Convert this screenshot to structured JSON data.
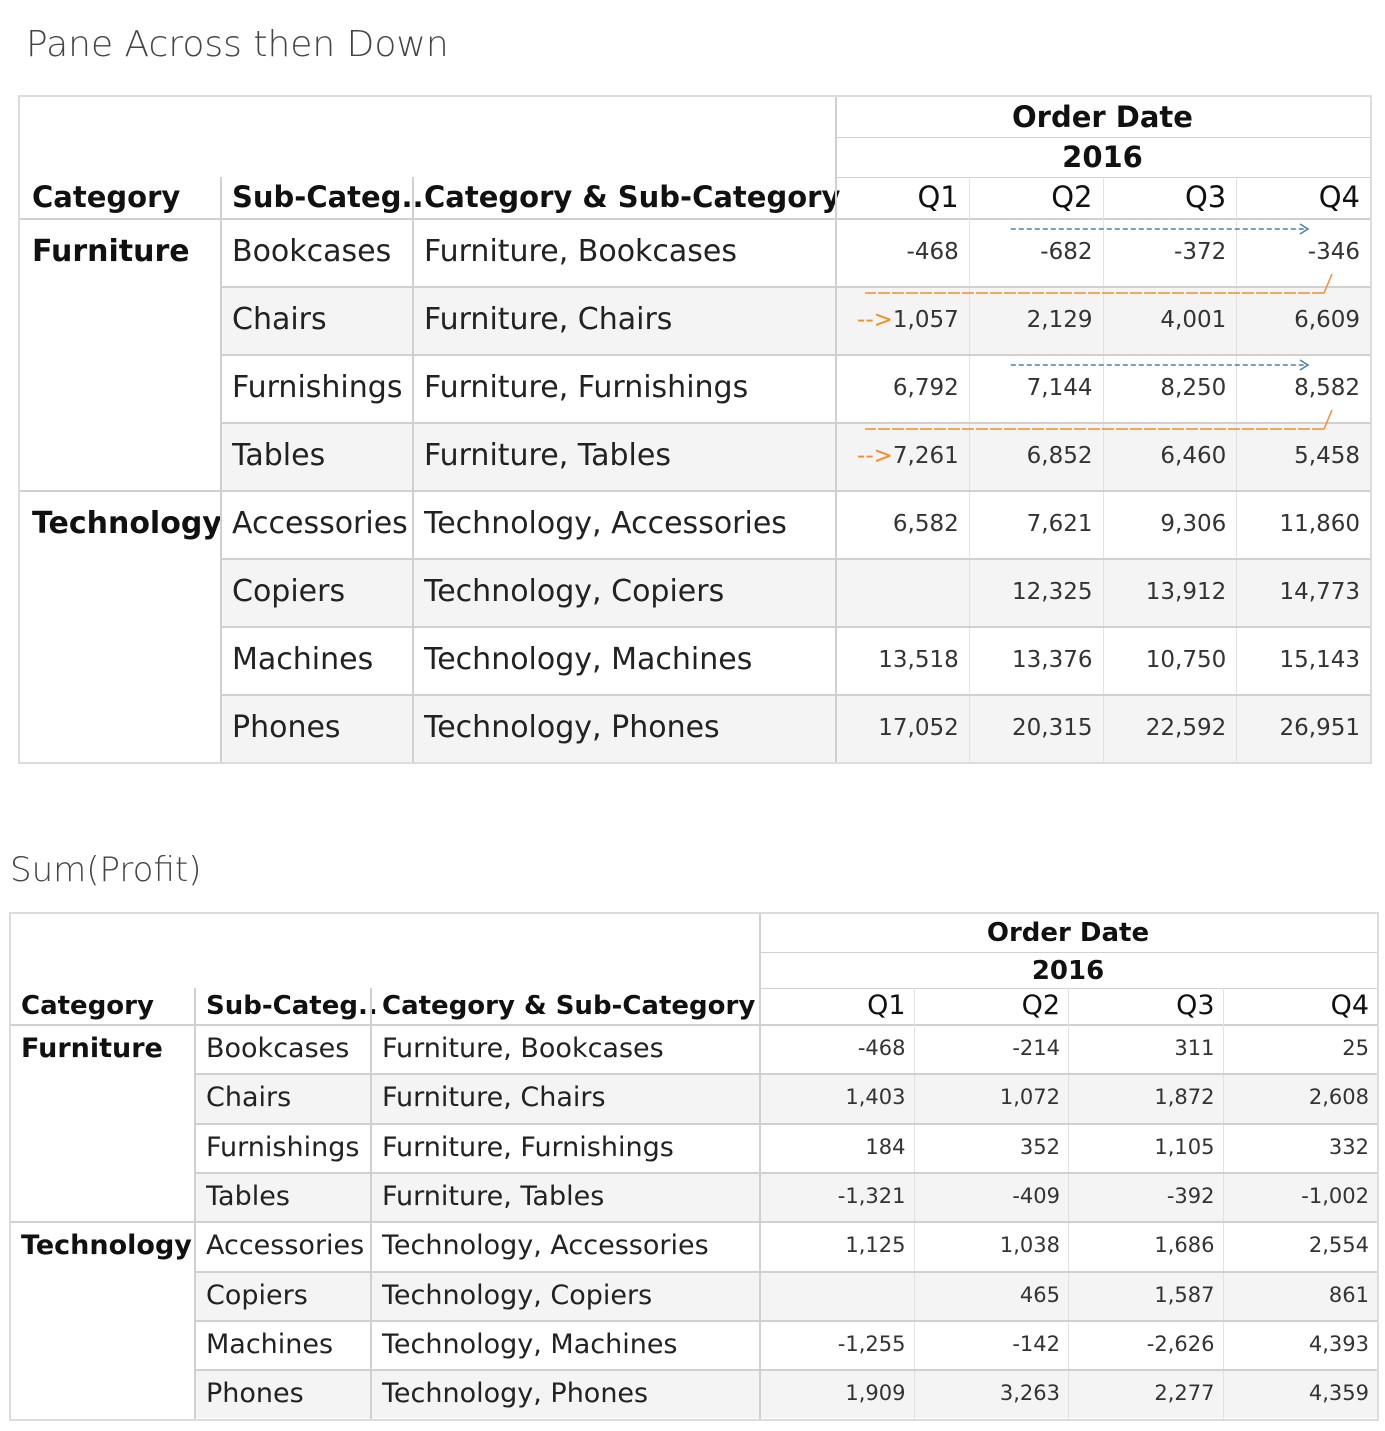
{
  "chart_data": [
    {
      "type": "table",
      "title": "Pane Across then Down",
      "column_header": {
        "field": "Order Date",
        "year": "2016",
        "quarters": [
          "Q1",
          "Q2",
          "Q3",
          "Q4"
        ]
      },
      "row_headers": [
        "Category",
        "Sub-Categ..",
        "Category & Sub-Category"
      ],
      "rows": [
        {
          "category": "Furniture",
          "sub": "Bookcases",
          "combo": "Furniture, Bookcases",
          "values": [
            "-468",
            "-682",
            "-372",
            "-346"
          ]
        },
        {
          "category": "",
          "sub": "Chairs",
          "combo": "Furniture, Chairs",
          "values": [
            "1,057",
            "2,129",
            "4,001",
            "6,609"
          ]
        },
        {
          "category": "",
          "sub": "Furnishings",
          "combo": "Furniture, Furnishings",
          "values": [
            "6,792",
            "7,144",
            "8,250",
            "8,582"
          ]
        },
        {
          "category": "",
          "sub": "Tables",
          "combo": "Furniture, Tables",
          "values": [
            "7,261",
            "6,852",
            "6,460",
            "5,458"
          ]
        },
        {
          "category": "Technology",
          "sub": "Accessories",
          "combo": "Technology, Accessories",
          "values": [
            "6,582",
            "7,621",
            "9,306",
            "11,860"
          ]
        },
        {
          "category": "",
          "sub": "Copiers",
          "combo": "Technology, Copiers",
          "values": [
            "",
            "12,325",
            "13,912",
            "14,773"
          ]
        },
        {
          "category": "",
          "sub": "Machines",
          "combo": "Technology, Machines",
          "values": [
            "13,518",
            "13,376",
            "10,750",
            "15,143"
          ]
        },
        {
          "category": "",
          "sub": "Phones",
          "combo": "Technology, Phones",
          "values": [
            "17,052",
            "20,315",
            "22,592",
            "26,951"
          ]
        }
      ],
      "annotation_prefix": "-->",
      "colors": {
        "arrow_blue": "#4a7fa8",
        "arrow_orange": "#f28e2b",
        "band": "#f4f4f4",
        "grid": "#d0d0d0"
      }
    },
    {
      "type": "table",
      "title": "Sum(Profit)",
      "column_header": {
        "field": "Order Date",
        "year": "2016",
        "quarters": [
          "Q1",
          "Q2",
          "Q3",
          "Q4"
        ]
      },
      "row_headers": [
        "Category",
        "Sub-Categ..",
        "Category & Sub-Category"
      ],
      "rows": [
        {
          "category": "Furniture",
          "sub": "Bookcases",
          "combo": "Furniture, Bookcases",
          "values": [
            "-468",
            "-214",
            "311",
            "25"
          ]
        },
        {
          "category": "",
          "sub": "Chairs",
          "combo": "Furniture, Chairs",
          "values": [
            "1,403",
            "1,072",
            "1,872",
            "2,608"
          ]
        },
        {
          "category": "",
          "sub": "Furnishings",
          "combo": "Furniture, Furnishings",
          "values": [
            "184",
            "352",
            "1,105",
            "332"
          ]
        },
        {
          "category": "",
          "sub": "Tables",
          "combo": "Furniture, Tables",
          "values": [
            "-1,321",
            "-409",
            "-392",
            "-1,002"
          ]
        },
        {
          "category": "Technology",
          "sub": "Accessories",
          "combo": "Technology, Accessories",
          "values": [
            "1,125",
            "1,038",
            "1,686",
            "2,554"
          ]
        },
        {
          "category": "",
          "sub": "Copiers",
          "combo": "Technology, Copiers",
          "values": [
            "",
            "465",
            "1,587",
            "861"
          ]
        },
        {
          "category": "",
          "sub": "Machines",
          "combo": "Technology, Machines",
          "values": [
            "-1,255",
            "-142",
            "-2,626",
            "4,393"
          ]
        },
        {
          "category": "",
          "sub": "Phones",
          "combo": "Technology, Phones",
          "values": [
            "1,909",
            "3,263",
            "2,277",
            "4,359"
          ]
        }
      ]
    }
  ]
}
